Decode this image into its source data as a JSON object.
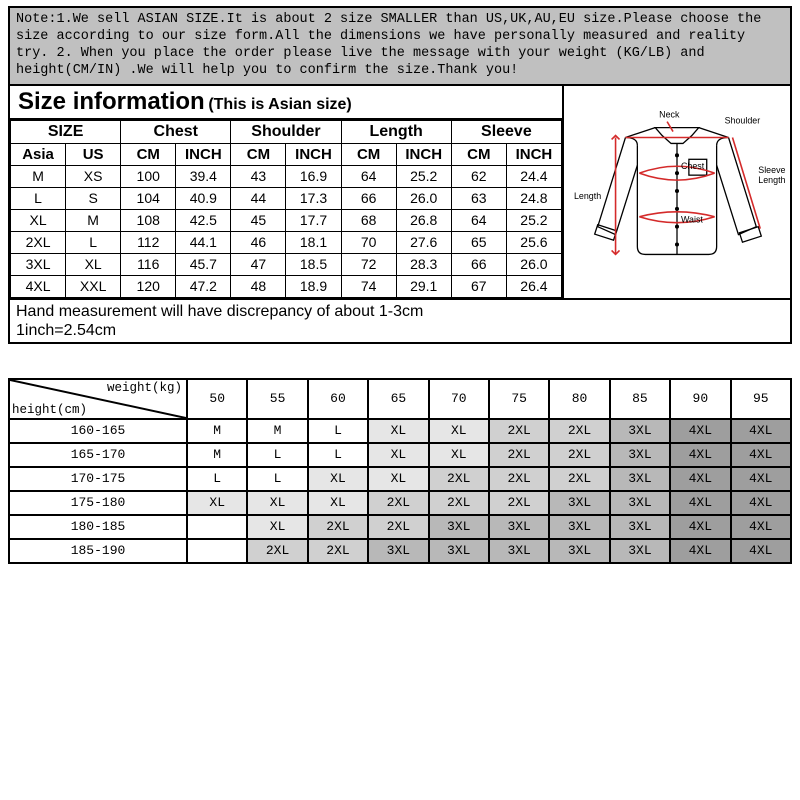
{
  "note": "Note:1.We sell ASIAN SIZE.It is about 2 size SMALLER than US,UK,AU,EU size.Please choose the size according to our size form.All the dimensions we have personally measured and reality try.\n2. When you place the order please live the message with your weight (KG/LB) and height(CM/IN) .We will help you to confirm the size.Thank you!",
  "title_main": "Size information",
  "title_sub": "(This is Asian size)",
  "size_groups": [
    "SIZE",
    "Chest",
    "Shoulder",
    "Length",
    "Sleeve"
  ],
  "size_sub": [
    "Asia",
    "US",
    "CM",
    "INCH",
    "CM",
    "INCH",
    "CM",
    "INCH",
    "CM",
    "INCH"
  ],
  "size_rows": [
    [
      "M",
      "XS",
      "100",
      "39.4",
      "43",
      "16.9",
      "64",
      "25.2",
      "62",
      "24.4"
    ],
    [
      "L",
      "S",
      "104",
      "40.9",
      "44",
      "17.3",
      "66",
      "26.0",
      "63",
      "24.8"
    ],
    [
      "XL",
      "M",
      "108",
      "42.5",
      "45",
      "17.7",
      "68",
      "26.8",
      "64",
      "25.2"
    ],
    [
      "2XL",
      "L",
      "112",
      "44.1",
      "46",
      "18.1",
      "70",
      "27.6",
      "65",
      "25.6"
    ],
    [
      "3XL",
      "XL",
      "116",
      "45.7",
      "47",
      "18.5",
      "72",
      "28.3",
      "66",
      "26.0"
    ],
    [
      "4XL",
      "XXL",
      "120",
      "47.2",
      "48",
      "18.9",
      "74",
      "29.1",
      "67",
      "26.4"
    ]
  ],
  "meas_note1": "Hand measurement will have discrepancy of about 1-3cm",
  "meas_note2": "1inch=2.54cm",
  "shirt_labels": {
    "neck": "Neck",
    "shoulder": "Shoulder",
    "chest": "Chest",
    "waist": "Waist",
    "length": "Length",
    "sleeve": "Sleeve\nLength"
  },
  "hw_header_weight": "weight(kg)",
  "hw_header_height": "height(cm)",
  "hw_weights": [
    "50",
    "55",
    "60",
    "65",
    "70",
    "75",
    "80",
    "85",
    "90",
    "95"
  ],
  "hw_heights": [
    "160-165",
    "165-170",
    "170-175",
    "175-180",
    "180-185",
    "185-190"
  ],
  "hw_cells": [
    [
      "M",
      "M",
      "L",
      "XL",
      "XL",
      "2XL",
      "2XL",
      "3XL",
      "4XL",
      "4XL"
    ],
    [
      "M",
      "L",
      "L",
      "XL",
      "XL",
      "2XL",
      "2XL",
      "3XL",
      "4XL",
      "4XL"
    ],
    [
      "L",
      "L",
      "XL",
      "XL",
      "2XL",
      "2XL",
      "2XL",
      "3XL",
      "4XL",
      "4XL"
    ],
    [
      "XL",
      "XL",
      "XL",
      "2XL",
      "2XL",
      "2XL",
      "3XL",
      "3XL",
      "4XL",
      "4XL"
    ],
    [
      "",
      "XL",
      "2XL",
      "2XL",
      "3XL",
      "3XL",
      "3XL",
      "3XL",
      "4XL",
      "4XL"
    ],
    [
      "",
      "2XL",
      "2XL",
      "3XL",
      "3XL",
      "3XL",
      "3XL",
      "3XL",
      "4XL",
      "4XL"
    ]
  ],
  "hw_shades": [
    [
      "#ffffff",
      "#ffffff",
      "#ffffff",
      "#e6e6e6",
      "#e6e6e6",
      "#d0d0d0",
      "#d0d0d0",
      "#b8b8b8",
      "#9e9e9e",
      "#9e9e9e"
    ],
    [
      "#ffffff",
      "#ffffff",
      "#ffffff",
      "#e6e6e6",
      "#e6e6e6",
      "#d0d0d0",
      "#d0d0d0",
      "#b8b8b8",
      "#9e9e9e",
      "#9e9e9e"
    ],
    [
      "#ffffff",
      "#ffffff",
      "#e6e6e6",
      "#e6e6e6",
      "#d0d0d0",
      "#d0d0d0",
      "#d0d0d0",
      "#b8b8b8",
      "#9e9e9e",
      "#9e9e9e"
    ],
    [
      "#e6e6e6",
      "#e6e6e6",
      "#e6e6e6",
      "#d0d0d0",
      "#d0d0d0",
      "#d0d0d0",
      "#b8b8b8",
      "#b8b8b8",
      "#9e9e9e",
      "#9e9e9e"
    ],
    [
      "#ffffff",
      "#e6e6e6",
      "#d0d0d0",
      "#d0d0d0",
      "#b8b8b8",
      "#b8b8b8",
      "#b8b8b8",
      "#b8b8b8",
      "#9e9e9e",
      "#9e9e9e"
    ],
    [
      "#ffffff",
      "#d0d0d0",
      "#d0d0d0",
      "#b8b8b8",
      "#b8b8b8",
      "#b8b8b8",
      "#b8b8b8",
      "#b8b8b8",
      "#9e9e9e",
      "#9e9e9e"
    ]
  ],
  "colors": {
    "note_bg": "#c0c0c0",
    "border": "#000000",
    "shirt_line": "#d42a2a"
  }
}
